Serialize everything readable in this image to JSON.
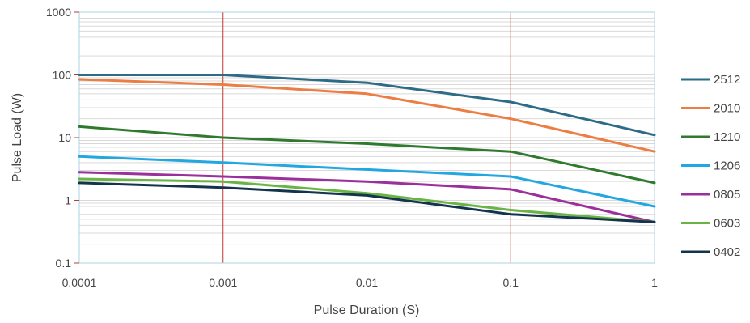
{
  "chart_data": {
    "type": "line",
    "title": "",
    "xlabel": "Pulse Duration (S)",
    "ylabel": "Pulse Load (W)",
    "x_scale": "log",
    "y_scale": "log",
    "xlim": [
      0.0001,
      1
    ],
    "ylim": [
      0.1,
      1000
    ],
    "x_ticks": [
      {
        "value": 0.0001,
        "label": "0.0001"
      },
      {
        "value": 0.001,
        "label": "0.001"
      },
      {
        "value": 0.01,
        "label": "0.01"
      },
      {
        "value": 0.1,
        "label": "0.1"
      },
      {
        "value": 1,
        "label": "1"
      }
    ],
    "y_ticks": [
      {
        "value": 0.1,
        "label": "0.1"
      },
      {
        "value": 1,
        "label": "1"
      },
      {
        "value": 10,
        "label": "10"
      },
      {
        "value": 100,
        "label": "100"
      },
      {
        "value": 1000,
        "label": "1000"
      }
    ],
    "grid": true,
    "legend_position": "right",
    "x": [
      0.0001,
      0.001,
      0.01,
      0.1,
      1
    ],
    "series": [
      {
        "name": "2512",
        "color": "#2e6b87",
        "values": [
          100,
          100,
          75,
          37,
          11
        ]
      },
      {
        "name": "2010",
        "color": "#ec7d43",
        "values": [
          85,
          70,
          50,
          20,
          6
        ]
      },
      {
        "name": "1210",
        "color": "#2f7a2f",
        "values": [
          15,
          10,
          8,
          6,
          1.9
        ]
      },
      {
        "name": "1206",
        "color": "#22a7e0",
        "values": [
          5,
          4,
          3.1,
          2.4,
          0.8
        ]
      },
      {
        "name": "0805",
        "color": "#9b2f9b",
        "values": [
          2.8,
          2.4,
          2,
          1.5,
          0.45
        ]
      },
      {
        "name": "0603",
        "color": "#6ab446",
        "values": [
          2.2,
          2,
          1.3,
          0.7,
          0.45
        ]
      },
      {
        "name": "0402",
        "color": "#14344d",
        "values": [
          1.9,
          1.6,
          1.2,
          0.6,
          0.45
        ]
      }
    ],
    "colors": {
      "major_vertical_grid": "#c0392b",
      "minor_grid": "#d9d9d9",
      "plot_border": "#a9d3e6"
    }
  }
}
